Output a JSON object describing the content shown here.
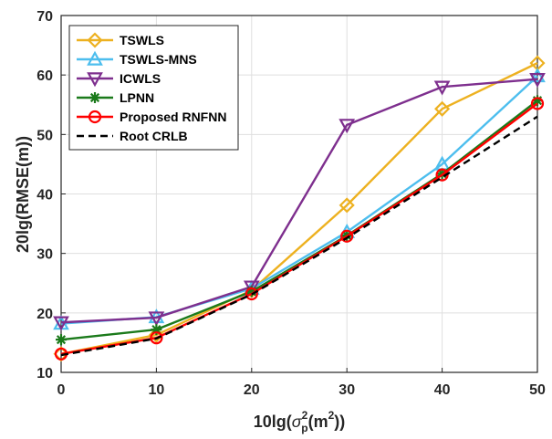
{
  "chart_data": {
    "type": "line",
    "xlabel": {
      "prefix": "10lg(",
      "sigma": "σ",
      "sup": "2",
      "sub": "p",
      "mid": "(m",
      "sup2": "2",
      "suffix": "))"
    },
    "ylabel": "20lg(RMSE(m))",
    "xlim": [
      0,
      50
    ],
    "ylim": [
      10,
      70
    ],
    "xticks": [
      0,
      10,
      20,
      30,
      40,
      50
    ],
    "yticks": [
      10,
      20,
      30,
      40,
      50,
      60,
      70
    ],
    "grid": true,
    "legend_position": "top-left",
    "x": [
      0,
      10,
      20,
      30,
      40,
      50
    ],
    "series": [
      {
        "name": "TSWLS",
        "color": "#EDB120",
        "marker": "diamond",
        "dash": "solid",
        "values": [
          13.1,
          16.3,
          23.8,
          38.1,
          54.3,
          62.0
        ]
      },
      {
        "name": "TSWLS-MNS",
        "color": "#4DBEEE",
        "marker": "triangle-up",
        "dash": "solid",
        "values": [
          18.2,
          19.3,
          24.1,
          33.6,
          45.0,
          59.8
        ]
      },
      {
        "name": "ICWLS",
        "color": "#7E2F8E",
        "marker": "triangle-down",
        "dash": "solid",
        "values": [
          18.4,
          19.2,
          24.4,
          51.6,
          58.0,
          59.3
        ]
      },
      {
        "name": "LPNN",
        "color": "#1B7A1B",
        "marker": "asterisk",
        "dash": "solid",
        "values": [
          15.5,
          17.2,
          23.6,
          33.0,
          43.4,
          55.7
        ]
      },
      {
        "name": "Proposed RNFNN",
        "color": "#FF0000",
        "marker": "circle",
        "dash": "solid",
        "values": [
          13.1,
          15.8,
          23.2,
          32.9,
          43.2,
          55.2
        ]
      },
      {
        "name": "Root CRLB",
        "color": "#000000",
        "marker": "none",
        "dash": "dashed",
        "values": [
          12.9,
          15.7,
          23.1,
          32.6,
          42.8,
          53.0
        ]
      }
    ]
  }
}
